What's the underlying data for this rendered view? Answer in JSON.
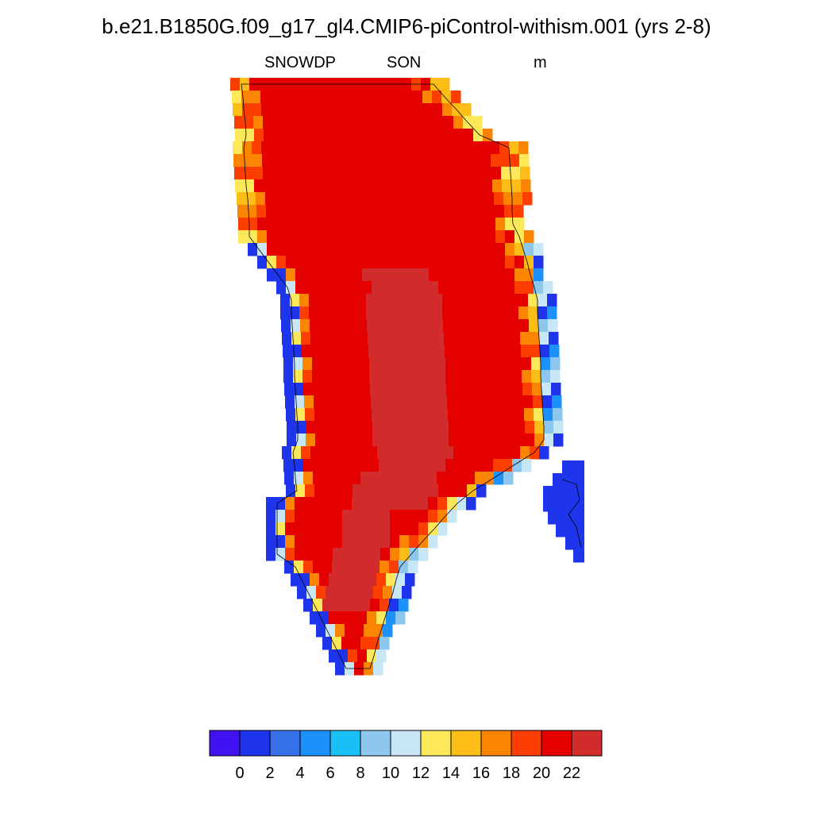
{
  "title": "b.e21.B1850G.f09_g17_gl4.CMIP6-piControl-withism.001 (yrs 2-8)",
  "variable": "SNOWDP",
  "season": "SON",
  "units": "m",
  "colorbar": {
    "colors": [
      "#3f12f2",
      "#1f35ec",
      "#3771e9",
      "#1c90fb",
      "#18c0f5",
      "#8ec7ee",
      "#c7e6f6",
      "#fde85a",
      "#fcbe16",
      "#fb8401",
      "#fd3e01",
      "#e50000",
      "#d22b2c"
    ],
    "tick_labels": [
      "0",
      "2",
      "4",
      "6",
      "8",
      "10",
      "12",
      "14",
      "16",
      "18",
      "20",
      "22"
    ]
  },
  "map_data": {
    "type": "gridded-map",
    "region": "Greenland",
    "levels": [
      0,
      2,
      4,
      6,
      8,
      10,
      12,
      14,
      16,
      18,
      20,
      22
    ]
  }
}
